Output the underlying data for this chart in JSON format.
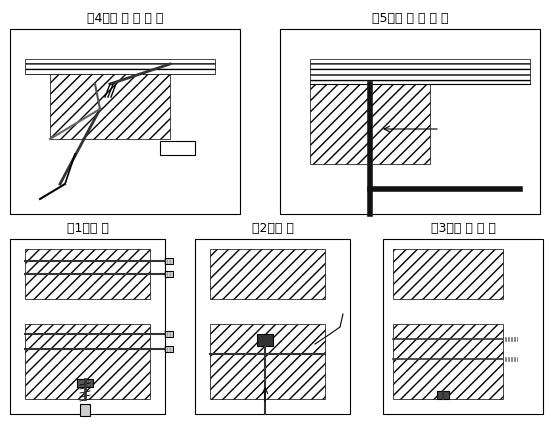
{
  "title": "",
  "background": "#ffffff",
  "line_color": "#000000",
  "hatch_color": "#000000",
  "labels": [
    "（1）成 孔",
    "（2）清 孔",
    "（3）丙 酮 清 洗",
    "（4）注 入 胶 粘 剂",
    "（5）插 入 连 接 件"
  ],
  "label_fontsize": 9,
  "fig_width": 5.51,
  "fig_height": 4.39,
  "dpi": 100
}
